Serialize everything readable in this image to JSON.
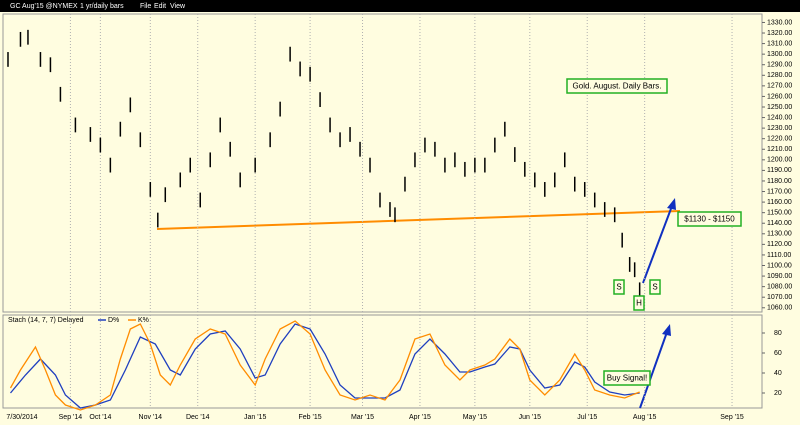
{
  "toolbar": {
    "symbol": "GC Aug'15 @NYMEX",
    "period": "1 yr/daily bars",
    "menus": [
      "File",
      "Edit",
      "View"
    ]
  },
  "chart_data": [
    {
      "type": "range-bar",
      "color": "#000000",
      "x": [
        0,
        5,
        8,
        13,
        17,
        21,
        27,
        33,
        37,
        41,
        45,
        49,
        53,
        57,
        60,
        63,
        69,
        73,
        77,
        81,
        85,
        89,
        93,
        99,
        105,
        109,
        113,
        117,
        121,
        125,
        129,
        133,
        137,
        141,
        145,
        149,
        153,
        155,
        159,
        163,
        167,
        171,
        175,
        179,
        183,
        187,
        191,
        195,
        199,
        203,
        207,
        211,
        215,
        219,
        223,
        227,
        231,
        235,
        239,
        243,
        246,
        249,
        251,
        253
      ],
      "high": [
        1302,
        1321,
        1323,
        1302,
        1297,
        1269,
        1240,
        1231,
        1221,
        1202,
        1236,
        1259,
        1226,
        1179,
        1150,
        1174,
        1188,
        1202,
        1169,
        1207,
        1240,
        1217,
        1188,
        1202,
        1226,
        1255,
        1307,
        1293,
        1288,
        1264,
        1240,
        1226,
        1231,
        1217,
        1202,
        1169,
        1160,
        1155,
        1184,
        1207,
        1221,
        1217,
        1202,
        1207,
        1198,
        1202,
        1202,
        1221,
        1236,
        1212,
        1198,
        1188,
        1179,
        1188,
        1207,
        1184,
        1179,
        1169,
        1160,
        1155,
        1131,
        1108,
        1103,
        1084
      ],
      "low": [
        1288,
        1307,
        1309,
        1288,
        1283,
        1255,
        1226,
        1217,
        1207,
        1188,
        1222,
        1245,
        1212,
        1165,
        1136,
        1160,
        1174,
        1188,
        1155,
        1193,
        1226,
        1203,
        1174,
        1188,
        1212,
        1241,
        1293,
        1279,
        1274,
        1250,
        1226,
        1212,
        1217,
        1203,
        1188,
        1155,
        1146,
        1141,
        1170,
        1193,
        1207,
        1203,
        1188,
        1193,
        1184,
        1188,
        1188,
        1207,
        1222,
        1198,
        1184,
        1174,
        1165,
        1174,
        1193,
        1170,
        1165,
        1155,
        1146,
        1141,
        1117,
        1094,
        1089,
        1070
      ],
      "xlim": [
        -2,
        302
      ],
      "xticks": [
        {
          "value": 25,
          "label": "Sep '14"
        },
        {
          "value": 37,
          "label": "Oct '14"
        },
        {
          "value": 57,
          "label": "Nov '14"
        },
        {
          "value": 76,
          "label": "Dec '14"
        },
        {
          "value": 99,
          "label": "Jan '15"
        },
        {
          "value": 121,
          "label": "Feb '15"
        },
        {
          "value": 142,
          "label": "Mar '15"
        },
        {
          "value": 165,
          "label": "Apr '15"
        },
        {
          "value": 187,
          "label": "May '15"
        },
        {
          "value": 209,
          "label": "Jun '15"
        },
        {
          "value": 232,
          "label": "Jul '15"
        },
        {
          "value": 255,
          "label": "Aug '15"
        },
        {
          "value": 290,
          "label": "Sep '15"
        }
      ],
      "ylim": [
        1056,
        1338
      ],
      "yticks": [
        {
          "value": 1060,
          "label": "1060.00"
        },
        {
          "value": 1070,
          "label": "1070.00"
        },
        {
          "value": 1080,
          "label": "1080.00"
        },
        {
          "value": 1090,
          "label": "1090.00"
        },
        {
          "value": 1100,
          "label": "1100.00"
        },
        {
          "value": 1110,
          "label": "1110.00"
        },
        {
          "value": 1120,
          "label": "1120.00"
        },
        {
          "value": 1130,
          "label": "1130.00"
        },
        {
          "value": 1140,
          "label": "1140.00"
        },
        {
          "value": 1150,
          "label": "1150.00"
        },
        {
          "value": 1160,
          "label": "1160.00"
        },
        {
          "value": 1170,
          "label": "1170.00"
        },
        {
          "value": 1180,
          "label": "1180.00"
        },
        {
          "value": 1190,
          "label": "1190.00"
        },
        {
          "value": 1200,
          "label": "1200.00"
        },
        {
          "value": 1210,
          "label": "1210.00"
        },
        {
          "value": 1220,
          "label": "1220.00"
        },
        {
          "value": 1230,
          "label": "1230.00"
        },
        {
          "value": 1240,
          "label": "1240.00"
        },
        {
          "value": 1250,
          "label": "1250.00"
        },
        {
          "value": 1260,
          "label": "1260.00"
        },
        {
          "value": 1270,
          "label": "1270.00"
        },
        {
          "value": 1280,
          "label": "1280.00"
        },
        {
          "value": 1290,
          "label": "1290.00"
        },
        {
          "value": 1300,
          "label": "1300.00"
        },
        {
          "value": 1310,
          "label": "1310.00"
        },
        {
          "value": 1320,
          "label": "1320.00"
        },
        {
          "value": 1330,
          "label": "1330.00"
        }
      ],
      "grid": true,
      "annotations": [
        {
          "text": "Gold. August. Daily Bars."
        },
        {
          "text": "$1130 - $1150"
        },
        {
          "text": "S"
        },
        {
          "text": "S"
        },
        {
          "text": "H"
        }
      ]
    },
    {
      "type": "line",
      "title": "Stach (14, 7, 7) Delayed",
      "cursor_label": "7/30/2014",
      "series": [
        {
          "name": "D%",
          "color": "#1f3fbf",
          "x": [
            1,
            7,
            13,
            19,
            23,
            29,
            35,
            41,
            47,
            53,
            59,
            65,
            69,
            75,
            81,
            87,
            93,
            99,
            103,
            109,
            115,
            121,
            127,
            133,
            139,
            145,
            151,
            157,
            163,
            169,
            175,
            181,
            185,
            191,
            195,
            201,
            205,
            209,
            215,
            221,
            227,
            231,
            235,
            241,
            247,
            253
          ],
          "values": [
            20,
            38,
            54,
            38,
            18,
            5,
            8,
            13,
            43,
            76,
            69,
            43,
            38,
            64,
            79,
            82,
            64,
            35,
            38,
            69,
            89,
            84,
            59,
            28,
            15,
            15,
            15,
            23,
            59,
            74,
            59,
            41,
            41,
            46,
            49,
            66,
            64,
            43,
            25,
            28,
            51,
            46,
            31,
            21,
            18,
            20
          ]
        },
        {
          "name": "K%",
          "color": "#ff8c00",
          "x": [
            1,
            5,
            11,
            15,
            19,
            23,
            29,
            35,
            41,
            45,
            49,
            53,
            57,
            61,
            65,
            69,
            75,
            81,
            87,
            93,
            99,
            103,
            109,
            115,
            121,
            127,
            133,
            139,
            145,
            151,
            157,
            163,
            169,
            175,
            181,
            185,
            191,
            195,
            201,
            205,
            209,
            215,
            221,
            227,
            231,
            235,
            241,
            247,
            253
          ],
          "values": [
            25,
            43,
            66,
            43,
            18,
            8,
            3,
            8,
            18,
            54,
            84,
            89,
            69,
            38,
            28,
            48,
            74,
            84,
            79,
            48,
            28,
            54,
            84,
            92,
            79,
            43,
            18,
            13,
            18,
            13,
            33,
            74,
            79,
            48,
            33,
            43,
            48,
            54,
            74,
            64,
            33,
            18,
            33,
            59,
            43,
            23,
            18,
            15,
            21
          ]
        }
      ],
      "xlim": [
        -2,
        302
      ],
      "ylim": [
        5,
        98
      ],
      "yticks": [
        20,
        40,
        60,
        80
      ],
      "grid": true,
      "annotations": [
        {
          "text": "Buy Signal!"
        }
      ]
    }
  ]
}
